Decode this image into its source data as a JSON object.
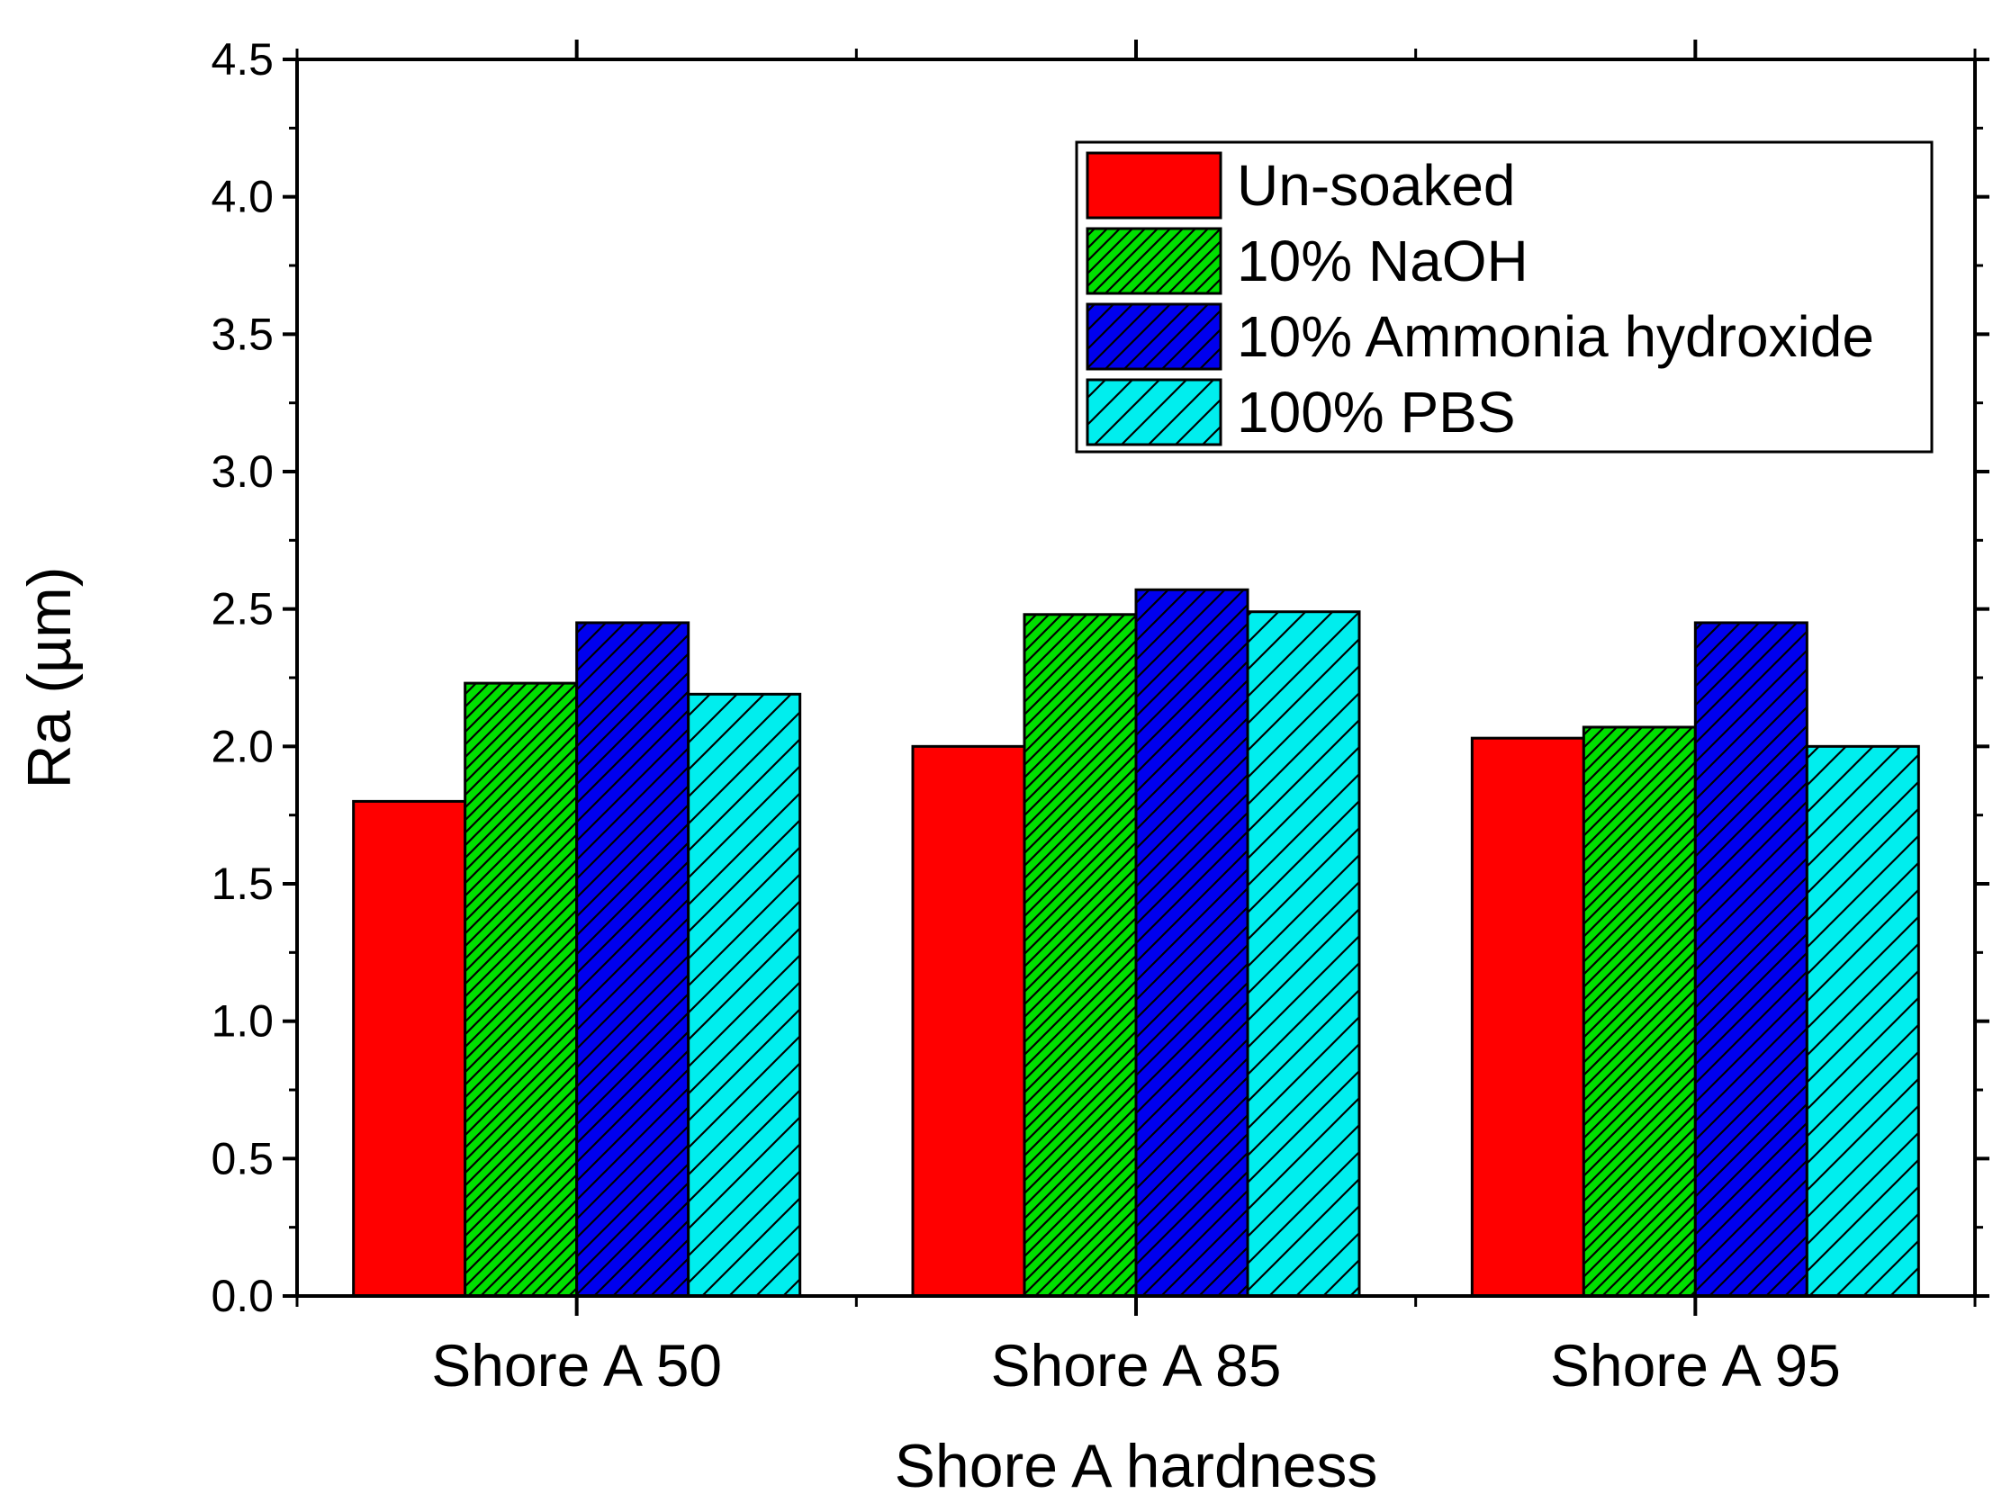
{
  "chart_data": {
    "type": "bar",
    "title": "",
    "xlabel": "Shore A hardness",
    "ylabel": "Ra (µm)",
    "ylim": [
      0,
      4.5
    ],
    "ytick_labels": [
      "0.0",
      "0.5",
      "1.0",
      "1.5",
      "2.0",
      "2.5",
      "3.0",
      "3.5",
      "4.0",
      "4.5"
    ],
    "categories": [
      "Shore A 50",
      "Shore A 85",
      "Shore A 95"
    ],
    "legend_position": "top-right",
    "grid": false,
    "series": [
      {
        "name": "Un-soaked",
        "color": "#ff0000",
        "pattern": "solid",
        "values": [
          1.8,
          2.0,
          2.03
        ]
      },
      {
        "name": "10% NaOH",
        "color": "#00e000",
        "pattern": "dense-hatch",
        "values": [
          2.23,
          2.48,
          2.07
        ]
      },
      {
        "name": "10% Ammonia hydroxide",
        "color": "#0000ee",
        "pattern": "medium-hatch",
        "values": [
          2.45,
          2.57,
          2.45
        ]
      },
      {
        "name": "100% PBS",
        "color": "#00eeee",
        "pattern": "sparse-hatch",
        "values": [
          2.19,
          2.49,
          2.0
        ]
      }
    ]
  }
}
